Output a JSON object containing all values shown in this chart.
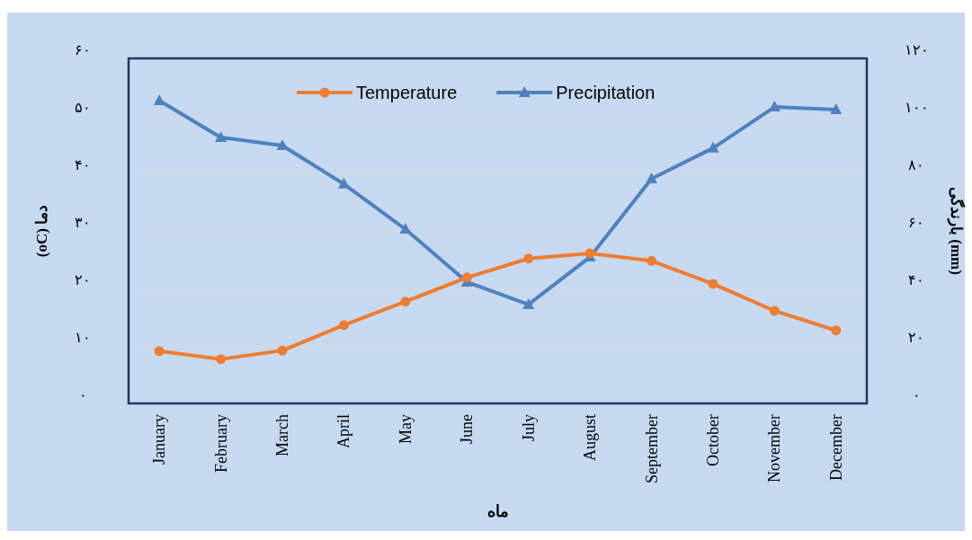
{
  "chart_data": {
    "type": "line",
    "xlabel": "ماه",
    "ylabel": "دما (oC)",
    "y2label": "بارندگی (mm)",
    "categories": [
      "January",
      "February",
      "March",
      "April",
      "May",
      "June",
      "July",
      "August",
      "September",
      "October",
      "November",
      "December"
    ],
    "series": [
      {
        "name": "Temperature",
        "color": "#ed7d31",
        "marker": "circle",
        "values": [
          9.1,
          7.7,
          9.2,
          13.6,
          17.7,
          21.9,
          25.2,
          26.1,
          24.8,
          20.8,
          16.1,
          12.7
        ]
      },
      {
        "name": "Precipitation",
        "color": "#4f81bd",
        "marker": "triangle",
        "axis": "y2",
        "values": [
          105.3,
          92.5,
          89.7,
          76.3,
          60.6,
          42.2,
          34.4,
          50.9,
          78.1,
          88.8,
          103.1,
          102.2
        ]
      }
    ],
    "ylim": [
      0,
      60
    ],
    "yticks": [
      {
        "value": 0,
        "label": "۰"
      },
      {
        "value": 10,
        "label": "۱۰"
      },
      {
        "value": 20,
        "label": "۲۰"
      },
      {
        "value": 30,
        "label": "۳۰"
      },
      {
        "value": 40,
        "label": "۴۰"
      },
      {
        "value": 50,
        "label": "۵۰"
      },
      {
        "value": 60,
        "label": "۶۰"
      }
    ],
    "y2lim": [
      0,
      120
    ],
    "y2ticks": [
      {
        "value": 0,
        "label": "۰"
      },
      {
        "value": 20,
        "label": "۲۰"
      },
      {
        "value": 40,
        "label": "۴۰"
      },
      {
        "value": 60,
        "label": "۶۰"
      },
      {
        "value": 80,
        "label": "۸۰"
      },
      {
        "value": 100,
        "label": "۱۰۰"
      },
      {
        "value": 120,
        "label": "۱۲۰"
      }
    ],
    "grid": "y",
    "legend": "top",
    "line_style": "solid"
  }
}
